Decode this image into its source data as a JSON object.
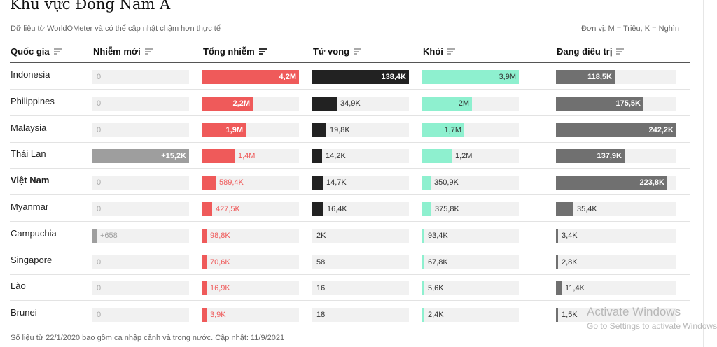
{
  "title": "Khu vực Đông Nam Á",
  "subtitle": "Dữ liệu từ WorldOMeter và có thể cập nhật chậm hơn thực tế",
  "unit_note": "Đơn vị: M = Triệu, K = Nghìn",
  "columns": {
    "country": "Quốc gia",
    "new": "Nhiễm mới",
    "total": "Tổng nhiễm",
    "deaths": "Tử vong",
    "recovered": "Khỏi",
    "active": "Đang điều trị"
  },
  "colors": {
    "new": "#9e9e9e",
    "total": "#ef5a5a",
    "deaths": "#222222",
    "recovered": "#8ef0cf",
    "active": "#707070"
  },
  "rows": [
    {
      "country": "Indonesia",
      "new": "0",
      "new_v": 0,
      "total": "4,2M",
      "total_v": 4200000,
      "deaths": "138,4K",
      "deaths_v": 138400,
      "recovered": "3,9M",
      "recovered_v": 3900000,
      "active": "118,5K",
      "active_v": 118500
    },
    {
      "country": "Philippines",
      "new": "0",
      "new_v": 0,
      "total": "2,2M",
      "total_v": 2200000,
      "deaths": "34,9K",
      "deaths_v": 34900,
      "recovered": "2M",
      "recovered_v": 2000000,
      "active": "175,5K",
      "active_v": 175500
    },
    {
      "country": "Malaysia",
      "new": "0",
      "new_v": 0,
      "total": "1,9M",
      "total_v": 1900000,
      "deaths": "19,8K",
      "deaths_v": 19800,
      "recovered": "1,7M",
      "recovered_v": 1700000,
      "active": "242,2K",
      "active_v": 242200
    },
    {
      "country": "Thái Lan",
      "new": "+15,2K",
      "new_v": 15200,
      "total": "1,4M",
      "total_v": 1400000,
      "deaths": "14,2K",
      "deaths_v": 14200,
      "recovered": "1,2M",
      "recovered_v": 1200000,
      "active": "137,9K",
      "active_v": 137900
    },
    {
      "country": "Việt Nam",
      "bold": true,
      "new": "0",
      "new_v": 0,
      "total": "589,4K",
      "total_v": 589400,
      "deaths": "14,7K",
      "deaths_v": 14700,
      "recovered": "350,9K",
      "recovered_v": 350900,
      "active": "223,8K",
      "active_v": 223800
    },
    {
      "country": "Myanmar",
      "new": "0",
      "new_v": 0,
      "total": "427,5K",
      "total_v": 427500,
      "deaths": "16,4K",
      "deaths_v": 16400,
      "recovered": "375,8K",
      "recovered_v": 375800,
      "active": "35,4K",
      "active_v": 35400
    },
    {
      "country": "Campuchia",
      "new": "+658",
      "new_v": 658,
      "total": "98,8K",
      "total_v": 98800,
      "deaths": "2K",
      "deaths_v": 2000,
      "recovered": "93,4K",
      "recovered_v": 93400,
      "active": "3,4K",
      "active_v": 3400
    },
    {
      "country": "Singapore",
      "new": "0",
      "new_v": 0,
      "total": "70,6K",
      "total_v": 70600,
      "deaths": "58",
      "deaths_v": 58,
      "recovered": "67,8K",
      "recovered_v": 67800,
      "active": "2,8K",
      "active_v": 2800
    },
    {
      "country": "Lào",
      "new": "0",
      "new_v": 0,
      "total": "16,9K",
      "total_v": 16900,
      "deaths": "16",
      "deaths_v": 16,
      "recovered": "5,6K",
      "recovered_v": 5600,
      "active": "11,4K",
      "active_v": 11400
    },
    {
      "country": "Brunei",
      "new": "0",
      "new_v": 0,
      "total": "3,9K",
      "total_v": 3900,
      "deaths": "18",
      "deaths_v": 18,
      "recovered": "2,4K",
      "recovered_v": 2400,
      "active": "1,5K",
      "active_v": 1500
    }
  ],
  "footer": "Số liệu từ 22/1/2020 bao gồm ca nhập cảnh và trong nước. Cập nhật: 11/9/2021",
  "watermark": {
    "line1": "Activate Windows",
    "line2": "Go to Settings to activate Windows."
  }
}
